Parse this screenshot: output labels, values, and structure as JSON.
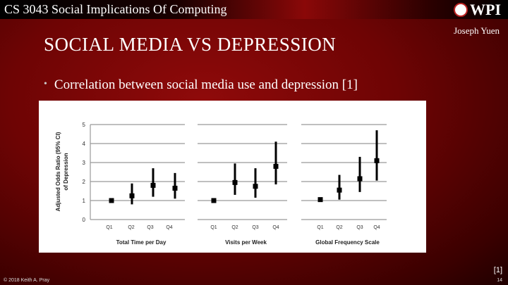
{
  "header": {
    "course": "CS 3043 Social Implications Of Computing",
    "logo": "WPI",
    "author": "Joseph Yuen"
  },
  "slide": {
    "title": "SOCIAL MEDIA VS DEPRESSION",
    "bullet": "Correlation between social media use and depression [1]",
    "reference_marker": "[1]"
  },
  "footer": {
    "copyright": "© 2018 Keith A. Pray",
    "page": "14"
  },
  "chart_data": [
    {
      "type": "scatter",
      "title": "",
      "xlabel": "Total Time per Day",
      "ylabel": "Adjusted Odds Ratio (95% CI) of Depression",
      "ylim": [
        0,
        5
      ],
      "yticks": [
        "0",
        "1",
        "2",
        "3",
        "4",
        "5"
      ],
      "grid": true,
      "categories": [
        "Q1",
        "Q2",
        "Q3",
        "Q4"
      ],
      "values": [
        1.0,
        1.25,
        1.8,
        1.65
      ],
      "ci_low": [
        1.0,
        0.8,
        1.2,
        1.1
      ],
      "ci_high": [
        1.0,
        1.9,
        2.7,
        2.45
      ]
    },
    {
      "type": "scatter",
      "title": "",
      "xlabel": "Visits per Week",
      "ylim": [
        0,
        5
      ],
      "grid": true,
      "categories": [
        "Q1",
        "Q2",
        "Q3",
        "Q4"
      ],
      "values": [
        1.0,
        1.95,
        1.75,
        2.8
      ],
      "ci_low": [
        1.0,
        1.3,
        1.15,
        1.85
      ],
      "ci_high": [
        1.0,
        2.95,
        2.7,
        4.1
      ]
    },
    {
      "type": "scatter",
      "title": "",
      "xlabel": "Global Frequency Scale",
      "ylim": [
        0,
        5
      ],
      "grid": true,
      "categories": [
        "Q1",
        "Q2",
        "Q3",
        "Q4"
      ],
      "values": [
        1.05,
        1.55,
        2.15,
        3.1
      ],
      "ci_low": [
        1.05,
        1.05,
        1.45,
        2.05
      ],
      "ci_high": [
        1.05,
        2.35,
        3.3,
        4.7
      ]
    }
  ]
}
